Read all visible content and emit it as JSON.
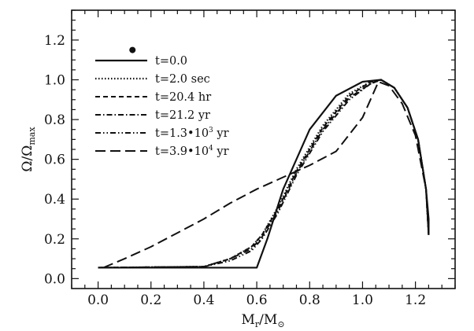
{
  "chart_data": {
    "type": "line",
    "xlabel": {
      "main": "M",
      "sub": "r",
      "sep": "/",
      "main2": "M",
      "sub2": "⊙"
    },
    "ylabel": {
      "main": "Ω/Ω",
      "sub": "max"
    },
    "xlim": [
      -0.1,
      1.35
    ],
    "ylim": [
      -0.05,
      1.35
    ],
    "xticks": [
      0.0,
      0.2,
      0.4,
      0.6,
      0.8,
      1.0,
      1.2
    ],
    "yticks": [
      0.0,
      0.2,
      0.4,
      0.6,
      0.8,
      1.0,
      1.2
    ],
    "xtick_labels": [
      "0.0",
      "0.2",
      "0.4",
      "0.6",
      "0.8",
      "1.0",
      "1.2"
    ],
    "ytick_labels": [
      "0.0",
      "0.2",
      "0.4",
      "0.6",
      "0.8",
      "1.0",
      "1.2"
    ],
    "legend_position": "upper-left",
    "marker_point": {
      "x": 0.13,
      "y": 1.15
    },
    "series": [
      {
        "name": "t=0.0",
        "label_parts": {
          "base": "t=0.0"
        },
        "dash": "solid",
        "x": [
          0.0,
          0.6,
          0.64,
          0.7,
          0.8,
          0.9,
          1.0,
          1.07,
          1.12,
          1.17,
          1.21,
          1.24,
          1.25,
          1.25
        ],
        "y": [
          0.055,
          0.055,
          0.2,
          0.45,
          0.75,
          0.92,
          0.99,
          1.0,
          0.96,
          0.86,
          0.7,
          0.45,
          0.3,
          0.22
        ]
      },
      {
        "name": "t=2.0 sec",
        "label_parts": {
          "base": "t=2.0 sec"
        },
        "dash": "dotted",
        "x": [
          0.0,
          0.4,
          0.5,
          0.58,
          0.62,
          0.68,
          0.75,
          0.85,
          0.95,
          1.03,
          1.07,
          1.12,
          1.17,
          1.21,
          1.24,
          1.25
        ],
        "y": [
          0.055,
          0.06,
          0.1,
          0.16,
          0.22,
          0.36,
          0.55,
          0.77,
          0.93,
          0.99,
          1.0,
          0.96,
          0.86,
          0.7,
          0.45,
          0.22
        ]
      },
      {
        "name": "t=20.4 hr",
        "label_parts": {
          "base": "t=20.4 hr"
        },
        "dash": "short-dash",
        "x": [
          0.0,
          0.4,
          0.5,
          0.58,
          0.62,
          0.68,
          0.75,
          0.85,
          0.95,
          1.03,
          1.07,
          1.12,
          1.17,
          1.21,
          1.24,
          1.25
        ],
        "y": [
          0.055,
          0.06,
          0.1,
          0.16,
          0.22,
          0.35,
          0.54,
          0.76,
          0.92,
          0.99,
          1.0,
          0.96,
          0.86,
          0.7,
          0.45,
          0.22
        ]
      },
      {
        "name": "t=21.2 yr",
        "label_parts": {
          "base": "t=21.2 yr"
        },
        "dash": "dash-dot",
        "x": [
          0.0,
          0.4,
          0.5,
          0.58,
          0.62,
          0.68,
          0.75,
          0.85,
          0.95,
          1.03,
          1.07,
          1.12,
          1.17,
          1.21,
          1.24,
          1.25
        ],
        "y": [
          0.055,
          0.06,
          0.1,
          0.15,
          0.21,
          0.34,
          0.53,
          0.75,
          0.91,
          0.98,
          1.0,
          0.96,
          0.86,
          0.7,
          0.45,
          0.22
        ]
      },
      {
        "name": "t=1.3·10³ yr",
        "label_parts": {
          "base": "t=1.3•10",
          "sup": "3",
          "tail": " yr"
        },
        "dash": "dash-dot-dot",
        "x": [
          0.0,
          0.4,
          0.5,
          0.58,
          0.62,
          0.68,
          0.75,
          0.85,
          0.95,
          1.03,
          1.07,
          1.12,
          1.17,
          1.21,
          1.24,
          1.25
        ],
        "y": [
          0.055,
          0.06,
          0.09,
          0.14,
          0.2,
          0.33,
          0.52,
          0.74,
          0.9,
          0.98,
          1.0,
          0.96,
          0.86,
          0.7,
          0.45,
          0.22
        ]
      },
      {
        "name": "t=3.9·10⁴ yr",
        "label_parts": {
          "base": "t=3.9•10",
          "sup": "4",
          "tail": " yr"
        },
        "dash": "long-dash",
        "x": [
          0.02,
          0.1,
          0.2,
          0.3,
          0.4,
          0.5,
          0.6,
          0.7,
          0.8,
          0.9,
          1.0,
          1.06,
          1.1,
          1.15,
          1.2,
          1.24,
          1.25
        ],
        "y": [
          0.055,
          0.1,
          0.16,
          0.23,
          0.3,
          0.38,
          0.45,
          0.51,
          0.57,
          0.64,
          0.81,
          0.99,
          0.97,
          0.88,
          0.72,
          0.45,
          0.22
        ]
      }
    ]
  }
}
